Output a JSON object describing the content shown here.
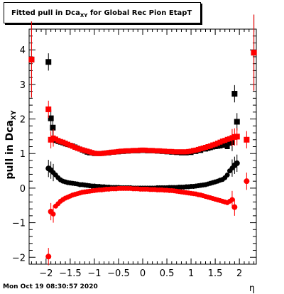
{
  "header": {
    "title_main": "Fitted pull in Dca",
    "title_sub": "XY",
    "title_rest": " for Global Rec Pion EtapT"
  },
  "footer": {
    "timestamp": "Mon Oct 19 08:30:57 2020"
  },
  "chart_data": {
    "type": "scatter",
    "title": "Fitted pull in Dca_XY for Global Rec Pion EtapT",
    "xlabel": "η",
    "ylabel": "pull in Dca_XY",
    "xlim": [
      -2.35,
      2.35
    ],
    "ylim": [
      -2.2,
      4.6
    ],
    "xticks": [
      -2,
      -1.5,
      -1,
      -0.5,
      0,
      0.5,
      1,
      1.5,
      2
    ],
    "xtick_labels": [
      "−2",
      "−1.5",
      "−1",
      "−0.5",
      "0",
      "0.5",
      "1",
      "1.5",
      "2"
    ],
    "yticks": [
      -2,
      -1,
      0,
      1,
      2,
      3,
      4
    ],
    "ytick_labels": [
      "−2",
      "−1",
      "0",
      "1",
      "2",
      "3",
      "4"
    ],
    "grid": false,
    "colors": {
      "black_series": "#000000",
      "red_series": "#ff0000"
    },
    "series": [
      {
        "marker": "square",
        "color": "#000000",
        "x": [
          -2.3,
          -1.95,
          -1.9,
          -1.86,
          -1.8,
          -1.75,
          -1.7,
          -1.65,
          -1.6,
          -1.55,
          -1.5,
          -1.45,
          -1.4,
          -1.35,
          -1.3,
          -1.25,
          -1.2,
          -1.15,
          -1.1,
          -1.0,
          -0.9,
          -0.8,
          -0.7,
          -0.6,
          -0.5,
          -0.4,
          -0.3,
          -0.2,
          -0.1,
          0.0,
          0.1,
          0.2,
          0.3,
          0.4,
          0.5,
          0.6,
          0.7,
          0.8,
          0.9,
          1.0,
          1.1,
          1.2,
          1.3,
          1.35,
          1.4,
          1.45,
          1.5,
          1.55,
          1.6,
          1.65,
          1.7,
          1.75,
          1.8,
          1.85,
          1.9,
          1.95,
          2.3
        ],
        "y": [
          3.72,
          3.65,
          2.02,
          1.75,
          1.38,
          1.35,
          1.33,
          1.31,
          1.28,
          1.26,
          1.24,
          1.22,
          1.19,
          1.16,
          1.13,
          1.1,
          1.07,
          1.04,
          1.02,
          1.0,
          1.0,
          1.01,
          1.02,
          1.04,
          1.05,
          1.06,
          1.07,
          1.08,
          1.08,
          1.09,
          1.08,
          1.08,
          1.07,
          1.06,
          1.05,
          1.04,
          1.03,
          1.02,
          1.02,
          1.03,
          1.06,
          1.09,
          1.13,
          1.15,
          1.17,
          1.19,
          1.2,
          1.21,
          1.22,
          1.24,
          1.26,
          1.2,
          1.3,
          1.32,
          2.73,
          1.92,
          3.92
        ]
      },
      {
        "marker": "square",
        "color": "#ff0000",
        "x": [
          -2.3,
          -1.95,
          -1.9,
          -1.85,
          -1.8,
          -1.75,
          -1.7,
          -1.65,
          -1.6,
          -1.55,
          -1.5,
          -1.45,
          -1.4,
          -1.35,
          -1.3,
          -1.25,
          -1.2,
          -1.15,
          -1.1,
          -1.05,
          -1.0,
          -0.95,
          -0.9,
          -0.85,
          -0.8,
          -0.75,
          -0.7,
          -0.65,
          -0.6,
          -0.55,
          -0.5,
          -0.45,
          -0.4,
          -0.35,
          -0.3,
          -0.25,
          -0.2,
          -0.15,
          -0.1,
          -0.05,
          0.0,
          0.05,
          0.1,
          0.15,
          0.2,
          0.25,
          0.3,
          0.35,
          0.4,
          0.45,
          0.5,
          0.55,
          0.6,
          0.65,
          0.7,
          0.75,
          0.8,
          0.85,
          0.9,
          0.95,
          1.0,
          1.05,
          1.1,
          1.15,
          1.2,
          1.25,
          1.3,
          1.35,
          1.4,
          1.45,
          1.5,
          1.55,
          1.6,
          1.65,
          1.7,
          1.75,
          1.8,
          1.85,
          1.9,
          1.95,
          2.15,
          2.3
        ],
        "y": [
          3.72,
          2.28,
          1.4,
          1.45,
          1.42,
          1.38,
          1.35,
          1.33,
          1.3,
          1.27,
          1.24,
          1.21,
          1.18,
          1.15,
          1.13,
          1.11,
          1.09,
          1.07,
          1.05,
          1.03,
          1.01,
          1.0,
          1.0,
          1.0,
          1.01,
          1.02,
          1.03,
          1.04,
          1.04,
          1.05,
          1.06,
          1.07,
          1.07,
          1.08,
          1.08,
          1.08,
          1.09,
          1.09,
          1.09,
          1.1,
          1.1,
          1.1,
          1.09,
          1.09,
          1.09,
          1.08,
          1.08,
          1.08,
          1.07,
          1.07,
          1.06,
          1.06,
          1.06,
          1.05,
          1.05,
          1.05,
          1.05,
          1.05,
          1.05,
          1.06,
          1.07,
          1.09,
          1.1,
          1.12,
          1.14,
          1.16,
          1.18,
          1.2,
          1.22,
          1.25,
          1.27,
          1.3,
          1.33,
          1.36,
          1.38,
          1.41,
          1.43,
          1.46,
          1.48,
          1.49,
          1.4,
          3.92
        ]
      },
      {
        "marker": "circle",
        "color": "#000000",
        "x": [
          -1.95,
          -1.9,
          -1.85,
          -1.8,
          -1.75,
          -1.7,
          -1.65,
          -1.6,
          -1.55,
          -1.5,
          -1.45,
          -1.4,
          -1.35,
          -1.3,
          -1.25,
          -1.2,
          -1.15,
          -1.1,
          -1.05,
          -1.0,
          -0.95,
          -0.9,
          -0.85,
          -0.8,
          -0.75,
          -0.7,
          -0.65,
          -0.6,
          -0.55,
          -0.5,
          -0.45,
          -0.4,
          -0.35,
          -0.3,
          -0.25,
          -0.2,
          -0.15,
          -0.1,
          -0.05,
          0.0,
          0.05,
          0.1,
          0.15,
          0.2,
          0.25,
          0.3,
          0.35,
          0.4,
          0.45,
          0.5,
          0.55,
          0.6,
          0.65,
          0.7,
          0.75,
          0.8,
          0.85,
          0.9,
          0.95,
          1.0,
          1.05,
          1.1,
          1.15,
          1.2,
          1.25,
          1.3,
          1.35,
          1.4,
          1.45,
          1.5,
          1.55,
          1.6,
          1.65,
          1.7,
          1.75,
          1.8,
          1.85,
          1.9,
          1.95
        ],
        "y": [
          0.57,
          0.52,
          0.45,
          0.38,
          0.3,
          0.24,
          0.2,
          0.18,
          0.16,
          0.15,
          0.14,
          0.13,
          0.12,
          0.1,
          0.1,
          0.09,
          0.08,
          0.07,
          0.06,
          0.06,
          0.05,
          0.05,
          0.04,
          0.04,
          0.03,
          0.03,
          0.02,
          0.02,
          0.02,
          0.02,
          0.01,
          0.01,
          0.01,
          0.01,
          0.01,
          0.0,
          0.0,
          0.0,
          0.0,
          0.0,
          0.0,
          0.0,
          0.0,
          0.0,
          0.0,
          0.01,
          0.01,
          0.01,
          0.01,
          0.01,
          0.02,
          0.02,
          0.02,
          0.02,
          0.03,
          0.03,
          0.03,
          0.04,
          0.04,
          0.05,
          0.05,
          0.06,
          0.07,
          0.08,
          0.09,
          0.1,
          0.12,
          0.14,
          0.16,
          0.18,
          0.2,
          0.23,
          0.25,
          0.3,
          0.38,
          0.5,
          0.58,
          0.66,
          0.72
        ]
      },
      {
        "marker": "circle",
        "color": "#ff0000",
        "x": [
          -1.95,
          -1.9,
          -1.85,
          -1.8,
          -1.75,
          -1.7,
          -1.65,
          -1.6,
          -1.55,
          -1.5,
          -1.45,
          -1.4,
          -1.35,
          -1.3,
          -1.25,
          -1.2,
          -1.15,
          -1.1,
          -1.05,
          -1.0,
          -0.95,
          -0.9,
          -0.85,
          -0.8,
          -0.75,
          -0.7,
          -0.65,
          -0.6,
          -0.55,
          -0.5,
          -0.45,
          -0.4,
          -0.35,
          -0.3,
          -0.25,
          -0.2,
          -0.15,
          -0.1,
          -0.05,
          0.0,
          0.05,
          0.1,
          0.15,
          0.2,
          0.25,
          0.3,
          0.35,
          0.4,
          0.45,
          0.5,
          0.55,
          0.6,
          0.65,
          0.7,
          0.75,
          0.8,
          0.85,
          0.9,
          0.95,
          1.0,
          1.05,
          1.1,
          1.15,
          1.2,
          1.25,
          1.3,
          1.35,
          1.4,
          1.45,
          1.5,
          1.55,
          1.6,
          1.65,
          1.7,
          1.75,
          1.8,
          1.85,
          1.9,
          2.15
        ],
        "y": [
          -1.98,
          -0.68,
          -0.75,
          -0.52,
          -0.45,
          -0.38,
          -0.33,
          -0.29,
          -0.26,
          -0.23,
          -0.2,
          -0.18,
          -0.16,
          -0.14,
          -0.12,
          -0.11,
          -0.1,
          -0.09,
          -0.08,
          -0.07,
          -0.06,
          -0.05,
          -0.05,
          -0.04,
          -0.03,
          -0.03,
          -0.02,
          -0.02,
          -0.02,
          -0.01,
          -0.01,
          -0.01,
          -0.01,
          -0.01,
          -0.01,
          -0.02,
          -0.02,
          -0.02,
          -0.03,
          -0.03,
          -0.03,
          -0.03,
          -0.04,
          -0.04,
          -0.04,
          -0.05,
          -0.05,
          -0.05,
          -0.06,
          -0.06,
          -0.07,
          -0.07,
          -0.08,
          -0.09,
          -0.1,
          -0.11,
          -0.12,
          -0.13,
          -0.14,
          -0.15,
          -0.16,
          -0.17,
          -0.19,
          -0.2,
          -0.22,
          -0.24,
          -0.26,
          -0.28,
          -0.3,
          -0.32,
          -0.34,
          -0.36,
          -0.38,
          -0.4,
          -0.42,
          -0.38,
          -0.33,
          -0.55,
          0.2
        ]
      }
    ]
  }
}
